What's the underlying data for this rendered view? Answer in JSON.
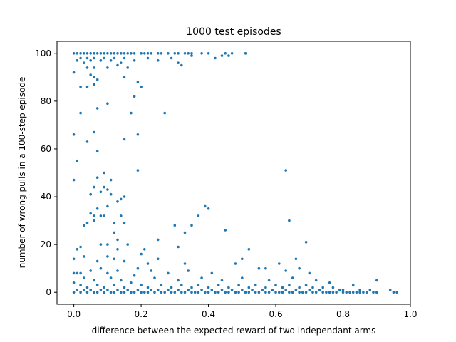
{
  "chart_data": {
    "type": "scatter",
    "title": "1000 test episodes",
    "xlabel": "difference between the expected reward of two independant arms",
    "ylabel": "number of wrong pulls in a 100-step episode",
    "xlim": [
      -0.05,
      1.0
    ],
    "ylim": [
      -5,
      105
    ],
    "xticks": [
      0.0,
      0.2,
      0.4,
      0.6,
      0.8,
      1.0
    ],
    "xtick_labels": [
      "0.0",
      "0.2",
      "0.4",
      "0.6",
      "0.8",
      "1.0"
    ],
    "yticks": [
      0,
      20,
      40,
      60,
      80,
      100
    ],
    "ytick_labels": [
      "0",
      "20",
      "40",
      "60",
      "80",
      "100"
    ],
    "grid": false,
    "marker_color": "#1f77b4",
    "series": [
      {
        "points": [
          [
            0.0,
            100
          ],
          [
            0.01,
            100
          ],
          [
            0.02,
            100
          ],
          [
            0.03,
            100
          ],
          [
            0.04,
            100
          ],
          [
            0.05,
            100
          ],
          [
            0.06,
            100
          ],
          [
            0.07,
            100
          ],
          [
            0.08,
            100
          ],
          [
            0.09,
            100
          ],
          [
            0.1,
            100
          ],
          [
            0.11,
            100
          ],
          [
            0.12,
            100
          ],
          [
            0.13,
            100
          ],
          [
            0.14,
            100
          ],
          [
            0.15,
            100
          ],
          [
            0.16,
            100
          ],
          [
            0.17,
            100
          ],
          [
            0.18,
            100
          ],
          [
            0.2,
            100
          ],
          [
            0.21,
            100
          ],
          [
            0.22,
            100
          ],
          [
            0.23,
            100
          ],
          [
            0.25,
            100
          ],
          [
            0.26,
            100
          ],
          [
            0.28,
            100
          ],
          [
            0.3,
            100
          ],
          [
            0.31,
            100
          ],
          [
            0.33,
            100
          ],
          [
            0.34,
            100
          ],
          [
            0.35,
            100
          ],
          [
            0.38,
            100
          ],
          [
            0.4,
            100
          ],
          [
            0.45,
            100
          ],
          [
            0.47,
            100
          ],
          [
            0.51,
            100
          ],
          [
            0.02,
            98
          ],
          [
            0.04,
            98
          ],
          [
            0.06,
            98
          ],
          [
            0.09,
            98
          ],
          [
            0.12,
            98
          ],
          [
            0.15,
            98
          ],
          [
            0.22,
            98
          ],
          [
            0.29,
            98
          ],
          [
            0.35,
            99
          ],
          [
            0.42,
            98
          ],
          [
            0.44,
            99
          ],
          [
            0.01,
            97
          ],
          [
            0.03,
            96
          ],
          [
            0.05,
            97
          ],
          [
            0.08,
            97
          ],
          [
            0.11,
            97
          ],
          [
            0.14,
            96
          ],
          [
            0.18,
            97
          ],
          [
            0.25,
            97
          ],
          [
            0.31,
            96
          ],
          [
            0.32,
            95
          ],
          [
            0.46,
            99
          ],
          [
            0.04,
            94
          ],
          [
            0.06,
            94
          ],
          [
            0.1,
            94
          ],
          [
            0.13,
            95
          ],
          [
            0.16,
            94
          ],
          [
            0.0,
            92
          ],
          [
            0.05,
            91
          ],
          [
            0.06,
            90
          ],
          [
            0.07,
            89
          ],
          [
            0.15,
            90
          ],
          [
            0.19,
            88
          ],
          [
            0.02,
            86
          ],
          [
            0.04,
            86
          ],
          [
            0.06,
            87
          ],
          [
            0.2,
            86
          ],
          [
            0.18,
            82
          ],
          [
            0.1,
            79
          ],
          [
            0.07,
            77
          ],
          [
            0.02,
            75
          ],
          [
            0.17,
            75
          ],
          [
            0.27,
            75
          ],
          [
            0.06,
            67
          ],
          [
            0.0,
            66
          ],
          [
            0.19,
            66
          ],
          [
            0.15,
            64
          ],
          [
            0.04,
            63
          ],
          [
            0.07,
            59
          ],
          [
            0.01,
            55
          ],
          [
            0.19,
            51
          ],
          [
            0.63,
            51
          ],
          [
            0.09,
            50
          ],
          [
            0.07,
            48
          ],
          [
            0.11,
            47
          ],
          [
            0.0,
            47
          ],
          [
            0.06,
            44
          ],
          [
            0.09,
            44
          ],
          [
            0.1,
            43
          ],
          [
            0.08,
            42
          ],
          [
            0.11,
            41
          ],
          [
            0.05,
            41
          ],
          [
            0.15,
            40
          ],
          [
            0.14,
            39
          ],
          [
            0.13,
            38
          ],
          [
            0.39,
            36
          ],
          [
            0.4,
            35
          ],
          [
            0.07,
            35
          ],
          [
            0.1,
            36
          ],
          [
            0.05,
            33
          ],
          [
            0.09,
            32
          ],
          [
            0.06,
            32
          ],
          [
            0.08,
            32
          ],
          [
            0.14,
            32
          ],
          [
            0.37,
            32
          ],
          [
            0.06,
            30
          ],
          [
            0.12,
            29
          ],
          [
            0.15,
            29
          ],
          [
            0.04,
            29
          ],
          [
            0.03,
            28
          ],
          [
            0.64,
            30
          ],
          [
            0.3,
            28
          ],
          [
            0.35,
            28
          ],
          [
            0.33,
            25
          ],
          [
            0.45,
            26
          ],
          [
            0.12,
            25
          ],
          [
            0.13,
            22
          ],
          [
            0.25,
            22
          ],
          [
            0.69,
            21
          ],
          [
            0.08,
            20
          ],
          [
            0.1,
            20
          ],
          [
            0.16,
            20
          ],
          [
            0.02,
            19
          ],
          [
            0.01,
            18
          ],
          [
            0.13,
            18
          ],
          [
            0.21,
            18
          ],
          [
            0.52,
            18
          ],
          [
            0.31,
            19
          ],
          [
            0.2,
            16
          ],
          [
            0.03,
            15
          ],
          [
            0.0,
            14
          ],
          [
            0.1,
            15
          ],
          [
            0.12,
            14
          ],
          [
            0.25,
            14
          ],
          [
            0.5,
            14
          ],
          [
            0.66,
            14
          ],
          [
            0.07,
            13
          ],
          [
            0.15,
            13
          ],
          [
            0.22,
            12
          ],
          [
            0.33,
            12
          ],
          [
            0.48,
            12
          ],
          [
            0.61,
            12
          ],
          [
            0.0,
            8
          ],
          [
            0.01,
            8
          ],
          [
            0.02,
            8
          ],
          [
            0.05,
            9
          ],
          [
            0.08,
            10
          ],
          [
            0.1,
            8
          ],
          [
            0.13,
            9
          ],
          [
            0.19,
            10
          ],
          [
            0.23,
            9
          ],
          [
            0.28,
            8
          ],
          [
            0.34,
            9
          ],
          [
            0.41,
            8
          ],
          [
            0.55,
            10
          ],
          [
            0.57,
            10
          ],
          [
            0.63,
            9
          ],
          [
            0.67,
            10
          ],
          [
            0.7,
            8
          ],
          [
            0.03,
            6
          ],
          [
            0.06,
            5
          ],
          [
            0.11,
            6
          ],
          [
            0.14,
            5
          ],
          [
            0.18,
            7
          ],
          [
            0.24,
            6
          ],
          [
            0.31,
            5
          ],
          [
            0.38,
            6
          ],
          [
            0.44,
            5
          ],
          [
            0.5,
            6
          ],
          [
            0.58,
            5
          ],
          [
            0.65,
            6
          ],
          [
            0.72,
            5
          ],
          [
            0.76,
            4
          ],
          [
            0.83,
            3
          ],
          [
            0.9,
            5
          ],
          [
            0.0,
            4
          ],
          [
            0.02,
            3
          ],
          [
            0.04,
            2
          ],
          [
            0.07,
            3
          ],
          [
            0.09,
            2
          ],
          [
            0.12,
            3
          ],
          [
            0.15,
            2
          ],
          [
            0.17,
            4
          ],
          [
            0.2,
            3
          ],
          [
            0.22,
            2
          ],
          [
            0.26,
            3
          ],
          [
            0.29,
            2
          ],
          [
            0.32,
            3
          ],
          [
            0.35,
            2
          ],
          [
            0.37,
            3
          ],
          [
            0.4,
            2
          ],
          [
            0.43,
            3
          ],
          [
            0.46,
            2
          ],
          [
            0.49,
            3
          ],
          [
            0.52,
            2
          ],
          [
            0.54,
            3
          ],
          [
            0.57,
            2
          ],
          [
            0.6,
            3
          ],
          [
            0.62,
            2
          ],
          [
            0.64,
            3
          ],
          [
            0.67,
            2
          ],
          [
            0.69,
            3
          ],
          [
            0.71,
            2
          ],
          [
            0.74,
            2
          ],
          [
            0.77,
            2
          ],
          [
            0.8,
            1
          ],
          [
            0.85,
            1
          ],
          [
            0.01,
            1
          ],
          [
            0.03,
            1
          ],
          [
            0.05,
            1
          ],
          [
            0.08,
            1
          ],
          [
            0.1,
            1
          ],
          [
            0.11,
            0
          ],
          [
            0.13,
            1
          ],
          [
            0.14,
            0
          ],
          [
            0.16,
            1
          ],
          [
            0.18,
            0
          ],
          [
            0.19,
            1
          ],
          [
            0.21,
            0
          ],
          [
            0.23,
            1
          ],
          [
            0.24,
            0
          ],
          [
            0.25,
            1
          ],
          [
            0.27,
            0
          ],
          [
            0.28,
            1
          ],
          [
            0.3,
            0
          ],
          [
            0.31,
            1
          ],
          [
            0.33,
            0
          ],
          [
            0.34,
            1
          ],
          [
            0.36,
            0
          ],
          [
            0.38,
            1
          ],
          [
            0.39,
            0
          ],
          [
            0.41,
            1
          ],
          [
            0.42,
            0
          ],
          [
            0.44,
            1
          ],
          [
            0.45,
            0
          ],
          [
            0.47,
            1
          ],
          [
            0.48,
            0
          ],
          [
            0.5,
            1
          ],
          [
            0.51,
            0
          ],
          [
            0.53,
            1
          ],
          [
            0.55,
            0
          ],
          [
            0.56,
            1
          ],
          [
            0.58,
            0
          ],
          [
            0.59,
            1
          ],
          [
            0.61,
            0
          ],
          [
            0.63,
            1
          ],
          [
            0.64,
            0
          ],
          [
            0.66,
            1
          ],
          [
            0.68,
            0
          ],
          [
            0.7,
            1
          ],
          [
            0.72,
            0
          ],
          [
            0.73,
            1
          ],
          [
            0.75,
            0
          ],
          [
            0.78,
            0
          ],
          [
            0.79,
            1
          ],
          [
            0.81,
            0
          ],
          [
            0.83,
            0
          ],
          [
            0.86,
            0
          ],
          [
            0.88,
            1
          ],
          [
            0.89,
            0
          ],
          [
            0.94,
            1
          ],
          [
            0.95,
            0
          ],
          [
            0.0,
            0
          ],
          [
            0.02,
            0
          ],
          [
            0.04,
            0
          ],
          [
            0.06,
            0
          ],
          [
            0.07,
            0
          ],
          [
            0.09,
            0
          ],
          [
            0.12,
            0
          ],
          [
            0.15,
            0
          ],
          [
            0.17,
            0
          ],
          [
            0.2,
            0
          ],
          [
            0.22,
            0
          ],
          [
            0.26,
            0
          ],
          [
            0.29,
            0
          ],
          [
            0.32,
            0
          ],
          [
            0.35,
            0
          ],
          [
            0.37,
            0
          ],
          [
            0.4,
            0
          ],
          [
            0.43,
            0
          ],
          [
            0.46,
            0
          ],
          [
            0.49,
            0
          ],
          [
            0.52,
            0
          ],
          [
            0.54,
            0
          ],
          [
            0.57,
            0
          ],
          [
            0.6,
            0
          ],
          [
            0.62,
            0
          ],
          [
            0.65,
            0
          ],
          [
            0.67,
            0
          ],
          [
            0.69,
            0
          ],
          [
            0.71,
            0
          ],
          [
            0.74,
            0
          ],
          [
            0.76,
            0
          ],
          [
            0.77,
            0
          ],
          [
            0.8,
            0
          ],
          [
            0.82,
            0
          ],
          [
            0.84,
            0
          ],
          [
            0.85,
            0
          ],
          [
            0.87,
            0
          ],
          [
            0.9,
            0
          ],
          [
            0.96,
            0
          ]
        ]
      }
    ]
  }
}
